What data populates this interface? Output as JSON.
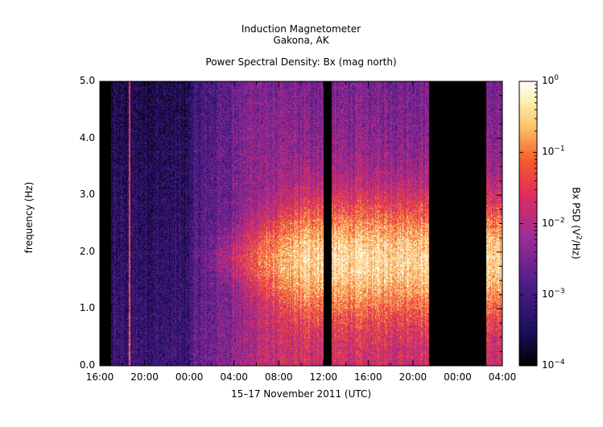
{
  "header": {
    "title_line1": "Induction Magnetometer",
    "title_line2": "Gakona, AK",
    "subtitle": "Power Spectral Density: Bx (mag north)"
  },
  "chart_data": {
    "type": "heatmap",
    "title": "Induction Magnetometer Gakona, AK",
    "subtitle": "Power Spectral Density: Bx (mag north)",
    "xlabel": "15–17 November 2011 (UTC)",
    "ylabel": "frequency (Hz)",
    "ylim": [
      0.0,
      5.0
    ],
    "xlim_hours": [
      0,
      36
    ],
    "x_tick_labels": [
      "16:00",
      "20:00",
      "00:00",
      "04:00",
      "08:00",
      "12:00",
      "16:00",
      "20:00",
      "00:00",
      "04:00"
    ],
    "x_tick_hours": [
      0,
      4,
      8,
      12,
      16,
      20,
      24,
      28,
      32,
      36
    ],
    "y_tick_labels": [
      "0.0",
      "1.0",
      "2.0",
      "3.0",
      "4.0",
      "5.0"
    ],
    "y_tick_values": [
      0,
      1,
      2,
      3,
      4,
      5
    ],
    "colorbar": {
      "label_base": "Bx PSD (V",
      "label_sup": "2",
      "label_tail": "/Hz)",
      "scale": "log",
      "range": [
        0.0001,
        1
      ],
      "ticks": [
        {
          "base": "10",
          "exp": "0"
        },
        {
          "base": "10",
          "exp": "−1"
        },
        {
          "base": "10",
          "exp": "−2"
        },
        {
          "base": "10",
          "exp": "−3"
        },
        {
          "base": "10",
          "exp": "−4"
        }
      ]
    },
    "data_gaps_hours": [
      [
        0,
        1.0
      ],
      [
        20.0,
        20.7
      ],
      [
        29.4,
        34.5
      ]
    ],
    "spike_hour": 2.65,
    "pc1_band": {
      "center_hz": 1.9,
      "start_hour": 8.3,
      "peak_hour": 18.5
    },
    "grid": false
  }
}
